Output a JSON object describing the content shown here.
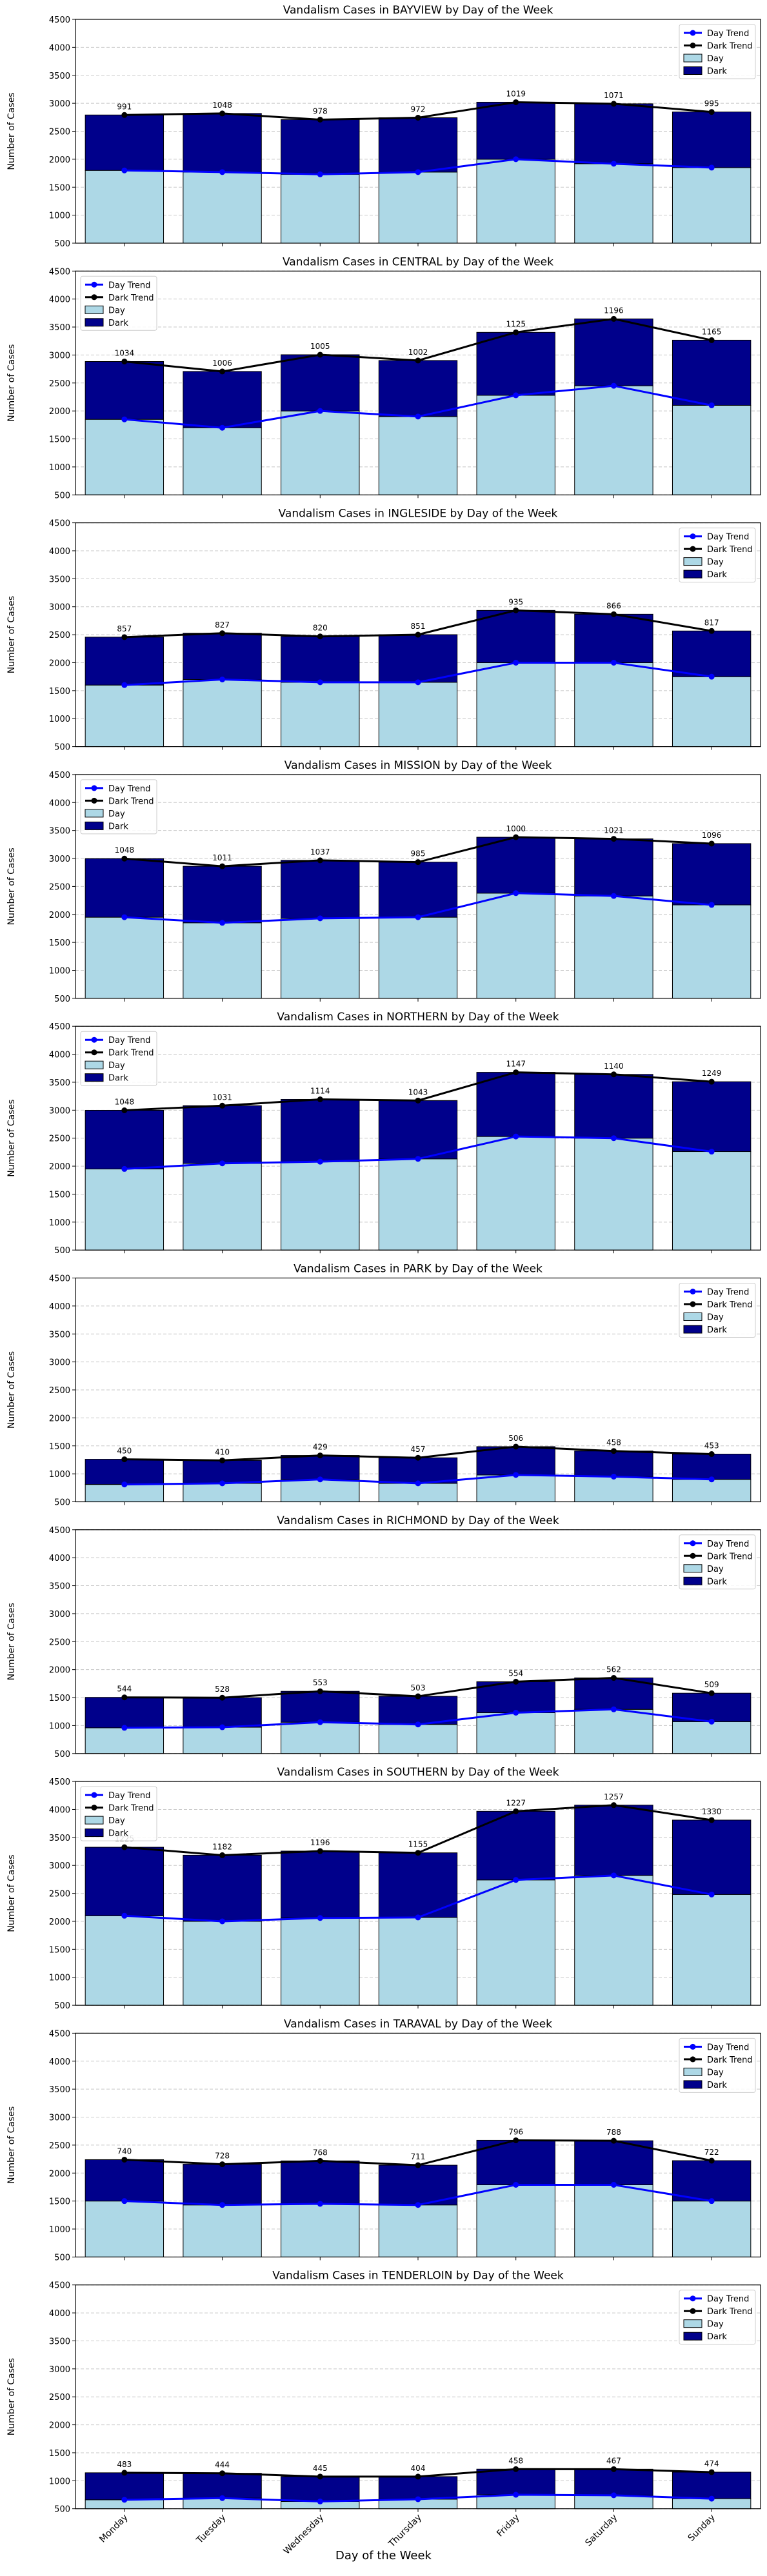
{
  "figure": {
    "xlabel": "Day of the Week",
    "legend_labels": [
      "Day Trend",
      "Dark Trend",
      "Day",
      "Dark"
    ],
    "colors": {
      "day": "#add8e6",
      "dark": "#00008b",
      "day_trend": "#0000ff",
      "dark_trend": "#000000"
    }
  },
  "chart_data": [
    {
      "type": "bar",
      "title": "Vandalism Cases in BAYVIEW by Day of the Week",
      "ylabel": "Number of Cases",
      "categories": [
        "Monday",
        "Tuesday",
        "Wednesday",
        "Thursday",
        "Friday",
        "Saturday",
        "Sunday"
      ],
      "ylim": [
        500,
        4500
      ],
      "yticks": [
        500,
        1000,
        1500,
        2000,
        2500,
        3000,
        3500,
        4000,
        4500
      ],
      "grid": "y",
      "legend": "top-right",
      "series": [
        {
          "name": "Day",
          "values": [
            1800,
            1770,
            1730,
            1770,
            2000,
            1920,
            1850
          ]
        },
        {
          "name": "Dark",
          "values": [
            991,
            1048,
            978,
            972,
            1019,
            1071,
            995
          ]
        }
      ],
      "data_labels": [
        "991",
        "1048",
        "978",
        "972",
        "1019",
        "1071",
        "995"
      ]
    },
    {
      "type": "bar",
      "title": "Vandalism Cases in CENTRAL by Day of the Week",
      "ylabel": "Number of Cases",
      "categories": [
        "Monday",
        "Tuesday",
        "Wednesday",
        "Thursday",
        "Friday",
        "Saturday",
        "Sunday"
      ],
      "ylim": [
        500,
        4500
      ],
      "yticks": [
        500,
        1000,
        1500,
        2000,
        2500,
        3000,
        3500,
        4000,
        4500
      ],
      "grid": "y",
      "legend": "top-left",
      "series": [
        {
          "name": "Day",
          "values": [
            1850,
            1700,
            2000,
            1900,
            2280,
            2450,
            2100
          ]
        },
        {
          "name": "Dark",
          "values": [
            1034,
            1006,
            1005,
            1002,
            1125,
            1196,
            1165
          ]
        }
      ],
      "data_labels": [
        "1034",
        "1006",
        "1005",
        "1002",
        "1125",
        "1196",
        "1165"
      ]
    },
    {
      "type": "bar",
      "title": "Vandalism Cases in INGLESIDE by Day of the Week",
      "ylabel": "Number of Cases",
      "categories": [
        "Monday",
        "Tuesday",
        "Wednesday",
        "Thursday",
        "Friday",
        "Saturday",
        "Sunday"
      ],
      "ylim": [
        500,
        4500
      ],
      "yticks": [
        500,
        1000,
        1500,
        2000,
        2500,
        3000,
        3500,
        4000,
        4500
      ],
      "grid": "y",
      "legend": "top-right",
      "series": [
        {
          "name": "Day",
          "values": [
            1600,
            1700,
            1650,
            1650,
            2000,
            2000,
            1750
          ]
        },
        {
          "name": "Dark",
          "values": [
            857,
            827,
            820,
            851,
            935,
            866,
            817
          ]
        }
      ],
      "data_labels": [
        "857",
        "827",
        "820",
        "851",
        "935",
        "866",
        "817"
      ]
    },
    {
      "type": "bar",
      "title": "Vandalism Cases in MISSION by Day of the Week",
      "ylabel": "Number of Cases",
      "categories": [
        "Monday",
        "Tuesday",
        "Wednesday",
        "Thursday",
        "Friday",
        "Saturday",
        "Sunday"
      ],
      "ylim": [
        500,
        4500
      ],
      "yticks": [
        500,
        1000,
        1500,
        2000,
        2500,
        3000,
        3500,
        4000,
        4500
      ],
      "grid": "y",
      "legend": "top-left",
      "series": [
        {
          "name": "Day",
          "values": [
            1950,
            1850,
            1930,
            1950,
            2380,
            2330,
            2170
          ]
        },
        {
          "name": "Dark",
          "values": [
            1048,
            1011,
            1037,
            985,
            1000,
            1021,
            1096
          ]
        }
      ],
      "data_labels": [
        "1048",
        "1011",
        "1037",
        "985",
        "1000",
        "1021",
        "1096"
      ]
    },
    {
      "type": "bar",
      "title": "Vandalism Cases in NORTHERN by Day of the Week",
      "ylabel": "Number of Cases",
      "categories": [
        "Monday",
        "Tuesday",
        "Wednesday",
        "Thursday",
        "Friday",
        "Saturday",
        "Sunday"
      ],
      "ylim": [
        500,
        4500
      ],
      "yticks": [
        500,
        1000,
        1500,
        2000,
        2500,
        3000,
        3500,
        4000,
        4500
      ],
      "grid": "y",
      "legend": "top-left",
      "series": [
        {
          "name": "Day",
          "values": [
            1950,
            2050,
            2080,
            2130,
            2530,
            2500,
            2260
          ]
        },
        {
          "name": "Dark",
          "values": [
            1048,
            1031,
            1114,
            1043,
            1147,
            1140,
            1249
          ]
        }
      ],
      "data_labels": [
        "1048",
        "1031",
        "1114",
        "1043",
        "1147",
        "1140",
        "1249"
      ]
    },
    {
      "type": "bar",
      "title": "Vandalism Cases in PARK by Day of the Week",
      "ylabel": "Number of Cases",
      "categories": [
        "Monday",
        "Tuesday",
        "Wednesday",
        "Thursday",
        "Friday",
        "Saturday",
        "Sunday"
      ],
      "ylim": [
        500,
        4500
      ],
      "yticks": [
        500,
        1000,
        1500,
        2000,
        2500,
        3000,
        3500,
        4000,
        4500
      ],
      "grid": "y",
      "legend": "top-right",
      "series": [
        {
          "name": "Day",
          "values": [
            810,
            830,
            900,
            830,
            980,
            950,
            900
          ]
        },
        {
          "name": "Dark",
          "values": [
            450,
            410,
            429,
            457,
            506,
            458,
            453
          ]
        }
      ],
      "data_labels": [
        "450",
        "410",
        "429",
        "457",
        "506",
        "458",
        "453"
      ]
    },
    {
      "type": "bar",
      "title": "Vandalism Cases in RICHMOND by Day of the Week",
      "ylabel": "Number of Cases",
      "categories": [
        "Monday",
        "Tuesday",
        "Wednesday",
        "Thursday",
        "Friday",
        "Saturday",
        "Sunday"
      ],
      "ylim": [
        500,
        4500
      ],
      "yticks": [
        500,
        1000,
        1500,
        2000,
        2500,
        3000,
        3500,
        4000,
        4500
      ],
      "grid": "y",
      "legend": "top-right",
      "series": [
        {
          "name": "Day",
          "values": [
            960,
            970,
            1060,
            1020,
            1230,
            1290,
            1070
          ]
        },
        {
          "name": "Dark",
          "values": [
            544,
            528,
            553,
            503,
            554,
            562,
            509
          ]
        }
      ],
      "data_labels": [
        "544",
        "528",
        "553",
        "503",
        "554",
        "562",
        "509"
      ]
    },
    {
      "type": "bar",
      "title": "Vandalism Cases in SOUTHERN by Day of the Week",
      "ylabel": "Number of Cases",
      "categories": [
        "Monday",
        "Tuesday",
        "Wednesday",
        "Thursday",
        "Friday",
        "Saturday",
        "Sunday"
      ],
      "ylim": [
        500,
        4500
      ],
      "yticks": [
        500,
        1000,
        1500,
        2000,
        2500,
        3000,
        3500,
        4000,
        4500
      ],
      "grid": "y",
      "legend": "top-left",
      "series": [
        {
          "name": "Day",
          "values": [
            2100,
            2000,
            2060,
            2070,
            2740,
            2820,
            2480
          ]
        },
        {
          "name": "Dark",
          "values": [
            1225,
            1182,
            1196,
            1155,
            1227,
            1257,
            1330
          ]
        }
      ],
      "data_labels": [
        "1225",
        "1182",
        "1196",
        "1155",
        "1227",
        "1257",
        "1330"
      ]
    },
    {
      "type": "bar",
      "title": "Vandalism Cases in TARAVAL by Day of the Week",
      "ylabel": "Number of Cases",
      "categories": [
        "Monday",
        "Tuesday",
        "Wednesday",
        "Thursday",
        "Friday",
        "Saturday",
        "Sunday"
      ],
      "ylim": [
        500,
        4500
      ],
      "yticks": [
        500,
        1000,
        1500,
        2000,
        2500,
        3000,
        3500,
        4000,
        4500
      ],
      "grid": "y",
      "legend": "top-right",
      "series": [
        {
          "name": "Day",
          "values": [
            1500,
            1430,
            1450,
            1430,
            1790,
            1790,
            1500
          ]
        },
        {
          "name": "Dark",
          "values": [
            740,
            728,
            768,
            711,
            796,
            788,
            722
          ]
        }
      ],
      "data_labels": [
        "740",
        "728",
        "768",
        "711",
        "796",
        "788",
        "722"
      ]
    },
    {
      "type": "bar",
      "title": "Vandalism Cases in TENDERLOIN by Day of the Week",
      "ylabel": "Number of Cases",
      "categories": [
        "Monday",
        "Tuesday",
        "Wednesday",
        "Thursday",
        "Friday",
        "Saturday",
        "Sunday"
      ],
      "ylim": [
        500,
        4500
      ],
      "yticks": [
        500,
        1000,
        1500,
        2000,
        2500,
        3000,
        3500,
        4000,
        4500
      ],
      "grid": "y",
      "legend": "top-right",
      "series": [
        {
          "name": "Day",
          "values": [
            660,
            690,
            630,
            670,
            750,
            740,
            680
          ]
        },
        {
          "name": "Dark",
          "values": [
            483,
            444,
            445,
            404,
            458,
            467,
            474
          ]
        }
      ],
      "data_labels": [
        "483",
        "444",
        "445",
        "404",
        "458",
        "467",
        "474"
      ]
    }
  ]
}
